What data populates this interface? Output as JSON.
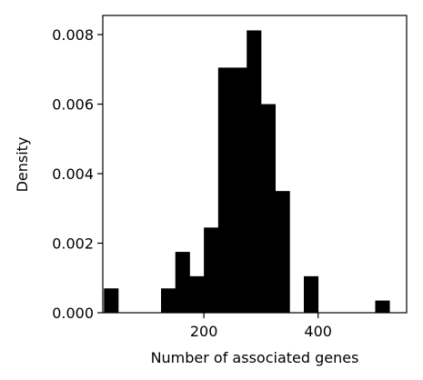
{
  "chart_data": {
    "type": "bar",
    "subtype": "histogram",
    "title": "",
    "xlabel": "Number of associated genes",
    "ylabel": "Density",
    "xlim": [
      23,
      555
    ],
    "ylim": [
      0,
      0.00855
    ],
    "xticks": [
      200,
      400
    ],
    "xtick_labels": [
      "200",
      "400"
    ],
    "yticks": [
      0,
      0.002,
      0.004,
      0.006,
      0.008
    ],
    "ytick_labels": [
      "0.000",
      "0.002",
      "0.004",
      "0.006",
      "0.008"
    ],
    "grid": false,
    "legend": "none",
    "bar_color": "#000000",
    "bins": [
      {
        "x0": 25,
        "x1": 50,
        "density": 0.0007
      },
      {
        "x0": 50,
        "x1": 75,
        "density": 0
      },
      {
        "x0": 75,
        "x1": 100,
        "density": 0
      },
      {
        "x0": 100,
        "x1": 125,
        "density": 0
      },
      {
        "x0": 125,
        "x1": 150,
        "density": 0.0007
      },
      {
        "x0": 150,
        "x1": 175,
        "density": 0.00175
      },
      {
        "x0": 175,
        "x1": 200,
        "density": 0.00105
      },
      {
        "x0": 200,
        "x1": 225,
        "density": 0.00245
      },
      {
        "x0": 225,
        "x1": 250,
        "density": 0.00705
      },
      {
        "x0": 250,
        "x1": 275,
        "density": 0.00705
      },
      {
        "x0": 275,
        "x1": 300,
        "density": 0.00812
      },
      {
        "x0": 300,
        "x1": 325,
        "density": 0.006
      },
      {
        "x0": 325,
        "x1": 350,
        "density": 0.0035
      },
      {
        "x0": 350,
        "x1": 375,
        "density": 0
      },
      {
        "x0": 375,
        "x1": 400,
        "density": 0.00105
      },
      {
        "x0": 400,
        "x1": 425,
        "density": 0
      },
      {
        "x0": 425,
        "x1": 450,
        "density": 0
      },
      {
        "x0": 450,
        "x1": 475,
        "density": 0
      },
      {
        "x0": 475,
        "x1": 500,
        "density": 0
      },
      {
        "x0": 500,
        "x1": 525,
        "density": 0.00035
      }
    ]
  }
}
